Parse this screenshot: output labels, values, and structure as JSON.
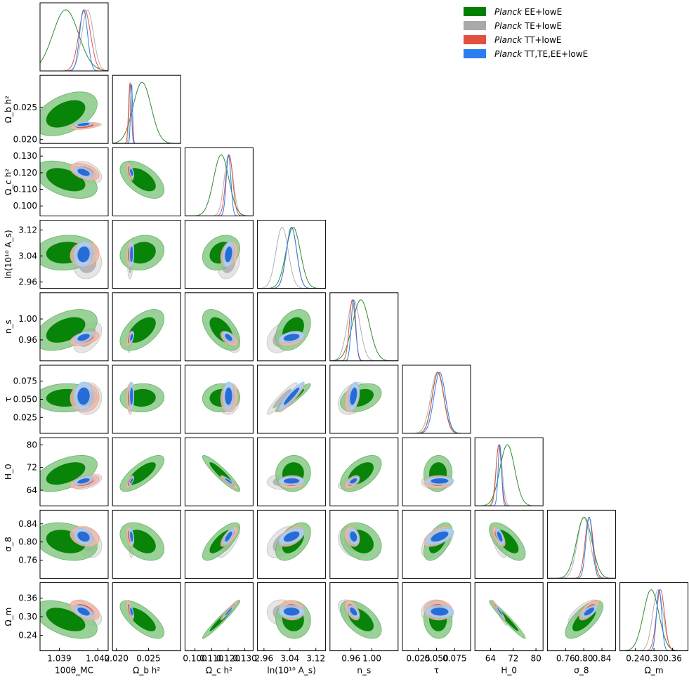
{
  "chart_data": {
    "type": "triangle-corner",
    "legend_position": "top-right",
    "legend": [
      {
        "prefix": "Planck",
        "name": "EE+lowE",
        "color": "#008000"
      },
      {
        "prefix": "Planck",
        "name": "TE+lowE",
        "color": "#a9a9a9"
      },
      {
        "prefix": "Planck",
        "name": "TT+lowE",
        "color": "#e2513f"
      },
      {
        "prefix": "Planck",
        "name": "TT,TE,EE+lowE",
        "color": "#2a7ef2"
      }
    ],
    "parameters": [
      {
        "label": "100θ_MC",
        "range": [
          1.0375,
          1.0428
        ],
        "ticks": [
          "1.039",
          "1.042"
        ],
        "tick_values": [
          1.039,
          1.042
        ]
      },
      {
        "label": "Ω_b h²",
        "range": [
          0.0194,
          0.03
        ],
        "ticks": [
          "0.020",
          "0.025"
        ],
        "tick_values": [
          0.02,
          0.025
        ]
      },
      {
        "label": "Ω_c h²",
        "range": [
          0.094,
          0.135
        ],
        "ticks": [
          "0.100",
          "0.110",
          "0.120",
          "0.130"
        ],
        "tick_values": [
          0.1,
          0.11,
          0.12,
          0.13
        ]
      },
      {
        "label": "ln(10¹⁰ A_s)",
        "range": [
          2.94,
          3.15
        ],
        "ticks": [
          "2.96",
          "3.04",
          "3.12"
        ],
        "tick_values": [
          2.96,
          3.04,
          3.12
        ]
      },
      {
        "label": "n_s",
        "range": [
          0.92,
          1.05
        ],
        "ticks": [
          "0.96",
          "1.00"
        ],
        "tick_values": [
          0.96,
          1.0
        ]
      },
      {
        "label": "τ",
        "range": [
          0.003,
          0.097
        ],
        "ticks": [
          "0.025",
          "0.050",
          "0.075"
        ],
        "tick_values": [
          0.025,
          0.05,
          0.075
        ]
      },
      {
        "label": "H_0",
        "range": [
          58.5,
          82.5
        ],
        "ticks": [
          "64",
          "72",
          "80"
        ],
        "tick_values": [
          64,
          72,
          80
        ]
      },
      {
        "label": "σ_8",
        "range": [
          0.72,
          0.87
        ],
        "ticks": [
          "0.76",
          "0.80",
          "0.84"
        ],
        "tick_values": [
          0.76,
          0.8,
          0.84
        ]
      },
      {
        "label": "Ω_m",
        "range": [
          0.19,
          0.41
        ],
        "ticks": [
          "0.24",
          "0.30",
          "0.36"
        ],
        "tick_values": [
          0.24,
          0.3,
          0.36
        ]
      }
    ],
    "series": [
      {
        "name": "EE+lowE",
        "means": [
          1.0395,
          0.024,
          0.1158,
          3.05,
          0.979,
          0.052,
          69.9,
          0.801,
          0.291
        ],
        "sigmas": [
          0.001,
          0.0014,
          0.0046,
          0.022,
          0.016,
          0.008,
          2.6,
          0.017,
          0.025
        ]
      },
      {
        "name": "TE+lowE",
        "means": [
          1.0412,
          0.02217,
          0.1203,
          3.016,
          0.965,
          0.051,
          67.0,
          0.8,
          0.313
        ],
        "sigmas": [
          0.00045,
          0.00017,
          0.0027,
          0.019,
          0.012,
          0.009,
          1.1,
          0.014,
          0.017
        ]
      },
      {
        "name": "TT+lowE",
        "means": [
          1.04097,
          0.02212,
          0.1206,
          3.045,
          0.9626,
          0.0522,
          66.9,
          0.8118,
          0.321
        ],
        "sigmas": [
          0.00046,
          0.00022,
          0.0021,
          0.016,
          0.0057,
          0.008,
          0.92,
          0.0089,
          0.013
        ]
      },
      {
        "name": "TT,TE,EE+lowE",
        "means": [
          1.04089,
          0.02236,
          0.1202,
          3.045,
          0.9649,
          0.0544,
          67.27,
          0.812,
          0.3166
        ],
        "sigmas": [
          0.00031,
          0.00015,
          0.0014,
          0.016,
          0.0044,
          0.0079,
          0.6,
          0.0073,
          0.0084
        ]
      }
    ]
  }
}
